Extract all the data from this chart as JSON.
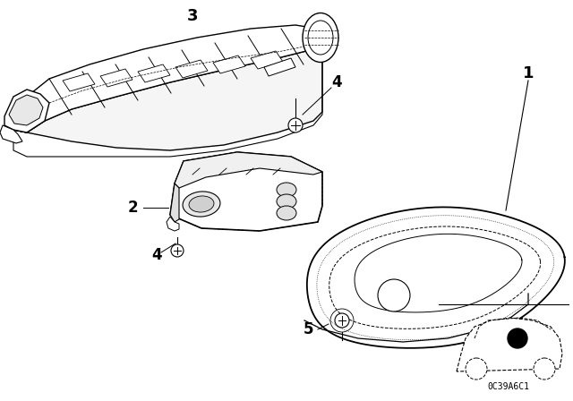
{
  "bg_color": "#ffffff",
  "line_color": "#000000",
  "text_color": "#000000",
  "diagram_code": "0C39A6C1",
  "label_1": "1",
  "label_2": "2",
  "label_3": "3",
  "label_4": "4",
  "label_5": "5"
}
